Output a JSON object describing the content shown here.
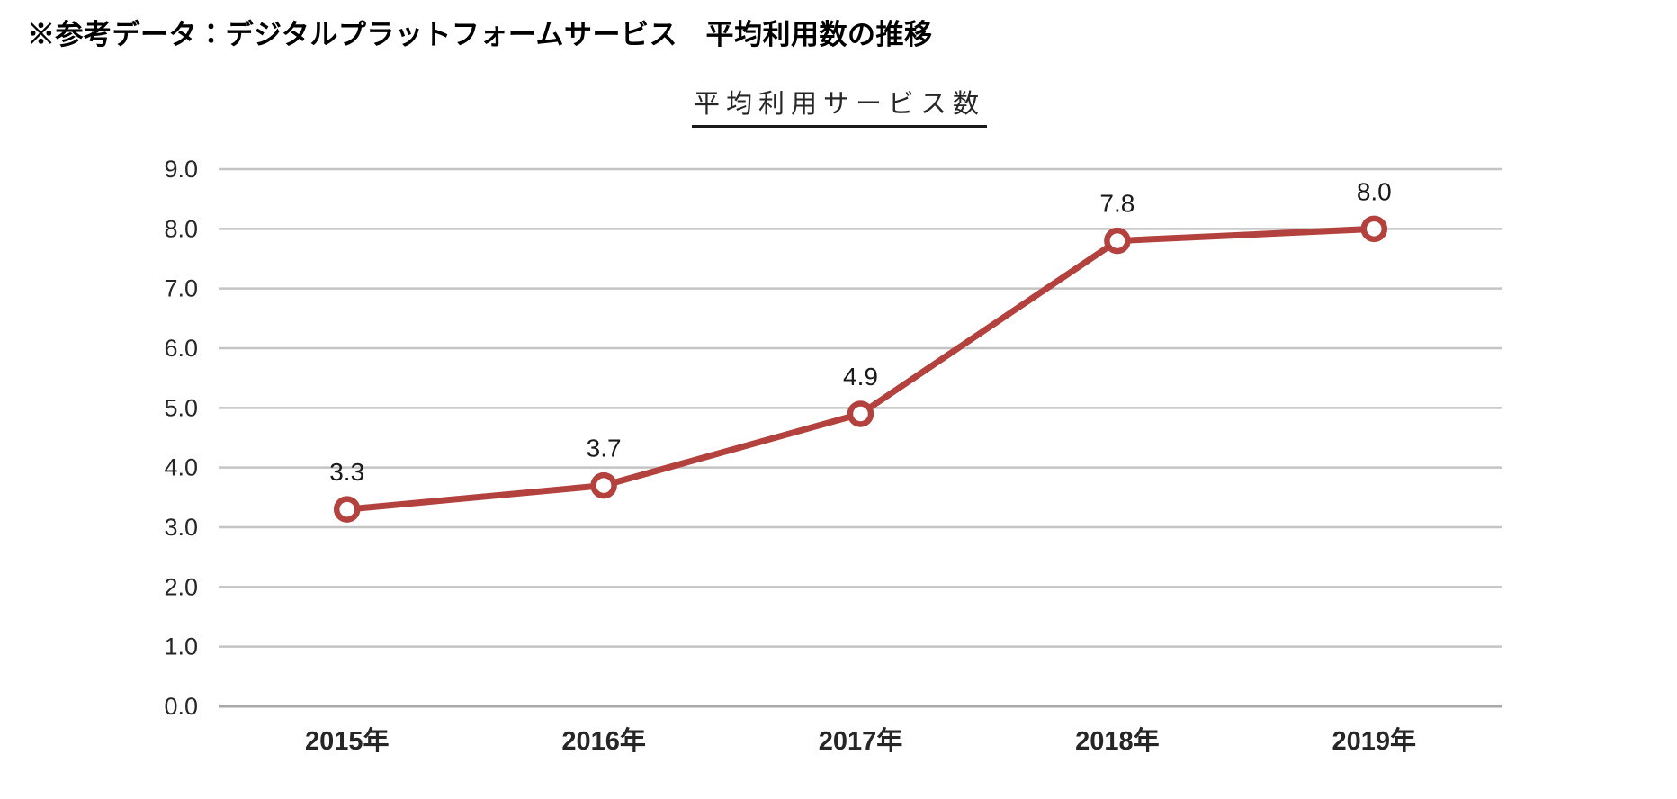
{
  "page": {
    "header": "※参考データ：デジタルプラットフォームサービス　平均利用数の推移"
  },
  "chart_data": {
    "type": "line",
    "title": "平均利用サービス数",
    "categories": [
      "2015年",
      "2016年",
      "2017年",
      "2018年",
      "2019年"
    ],
    "series": [
      {
        "name": "平均利用サービス数",
        "values": [
          3.3,
          3.7,
          4.9,
          7.8,
          8.0
        ],
        "data_labels": [
          "3.3",
          "3.7",
          "4.9",
          "7.8",
          "8.0"
        ]
      }
    ],
    "xlabel": "",
    "ylabel": "",
    "ylim": [
      0.0,
      9.0
    ],
    "y_tick_step": 1.0,
    "y_tick_labels": [
      "0.0",
      "1.0",
      "2.0",
      "3.0",
      "4.0",
      "5.0",
      "6.0",
      "7.0",
      "8.0",
      "9.0"
    ],
    "grid": true,
    "legend_position": "none",
    "marker_style": "open-circle",
    "colors": {
      "line": "#b3423e",
      "marker_fill": "#ffffff",
      "gridline": "#c4c4c4",
      "axis_line": "#a8a8a8",
      "tick_text": "#262626",
      "data_label_text": "#1a1a1a"
    }
  }
}
